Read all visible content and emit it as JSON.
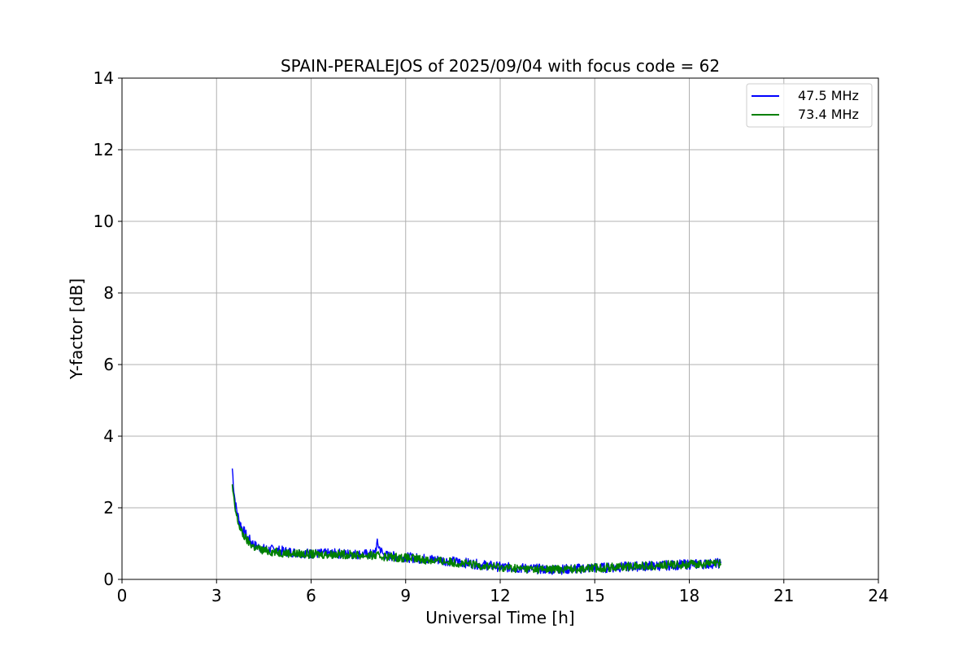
{
  "chart_data": {
    "type": "line",
    "title": "SPAIN-PERALEJOS of 2025/09/04 with focus code = 62",
    "xlabel": "Universal Time [h]",
    "ylabel": "Y-factor [dB]",
    "xlim": [
      0,
      24
    ],
    "ylim": [
      0,
      14
    ],
    "xticks": [
      0,
      3,
      6,
      9,
      12,
      15,
      18,
      21,
      24
    ],
    "yticks": [
      0,
      2,
      4,
      6,
      8,
      10,
      12,
      14
    ],
    "grid": true,
    "legend_position": "top-right",
    "series": [
      {
        "name": "47.5 MHz",
        "color": "#0000ff",
        "x": [
          3.5,
          3.55,
          3.6,
          3.7,
          3.8,
          4.0,
          4.2,
          4.5,
          5.0,
          5.5,
          6.0,
          6.5,
          7.0,
          7.5,
          8.0,
          8.1,
          8.3,
          8.5,
          9.0,
          9.5,
          10.0,
          10.5,
          11.0,
          11.5,
          12.0,
          12.5,
          13.0,
          13.5,
          14.0,
          14.5,
          15.0,
          15.5,
          16.0,
          16.5,
          17.0,
          17.5,
          18.0,
          18.5,
          19.0
        ],
        "values": [
          3.1,
          2.5,
          2.1,
          1.7,
          1.45,
          1.15,
          0.95,
          0.85,
          0.8,
          0.75,
          0.72,
          0.72,
          0.72,
          0.7,
          0.7,
          1.0,
          0.68,
          0.65,
          0.62,
          0.58,
          0.55,
          0.5,
          0.45,
          0.4,
          0.35,
          0.32,
          0.3,
          0.28,
          0.28,
          0.3,
          0.32,
          0.33,
          0.35,
          0.37,
          0.38,
          0.4,
          0.42,
          0.43,
          0.45
        ]
      },
      {
        "name": "73.4 MHz",
        "color": "#008000",
        "x": [
          3.5,
          3.55,
          3.6,
          3.7,
          3.8,
          4.0,
          4.2,
          4.5,
          5.0,
          5.5,
          6.0,
          6.5,
          7.0,
          7.5,
          8.0,
          8.5,
          9.0,
          9.5,
          10.0,
          10.5,
          11.0,
          11.5,
          12.0,
          12.5,
          13.0,
          13.5,
          14.0,
          14.5,
          15.0,
          15.5,
          16.0,
          16.5,
          17.0,
          17.5,
          18.0,
          18.5,
          19.0
        ],
        "values": [
          2.6,
          2.2,
          1.9,
          1.55,
          1.3,
          1.05,
          0.9,
          0.8,
          0.75,
          0.72,
          0.7,
          0.7,
          0.7,
          0.68,
          0.66,
          0.63,
          0.6,
          0.56,
          0.52,
          0.48,
          0.42,
          0.38,
          0.34,
          0.31,
          0.29,
          0.28,
          0.29,
          0.3,
          0.32,
          0.34,
          0.36,
          0.38,
          0.39,
          0.41,
          0.42,
          0.43,
          0.44
        ]
      }
    ]
  }
}
